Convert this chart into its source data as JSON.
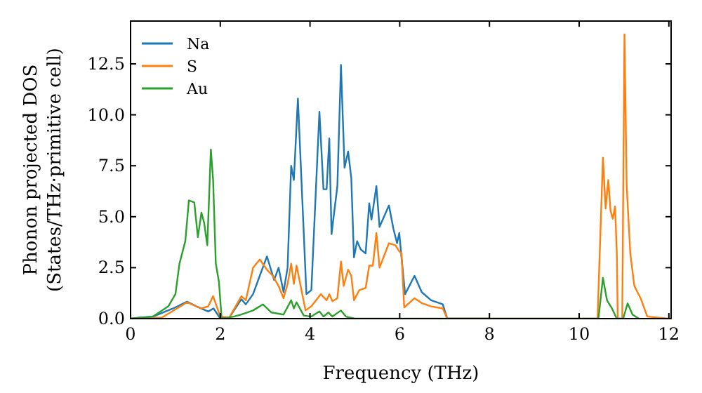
{
  "chart_data": {
    "type": "line",
    "xlabel": "Frequency (THz)",
    "ylabel": "Phonon projected DOS\n(States/THz·primitive cell)",
    "xlim": [
      0,
      12.05
    ],
    "ylim": [
      0,
      14.6
    ],
    "xticks": [
      0,
      2,
      4,
      6,
      8,
      10,
      12
    ],
    "yticks": [
      {
        "value": 0,
        "label": "0.0"
      },
      {
        "value": 2.5,
        "label": "2.5"
      },
      {
        "value": 5,
        "label": "5.0"
      },
      {
        "value": 7.5,
        "label": "7.5"
      },
      {
        "value": 10,
        "label": "10.0"
      },
      {
        "value": 12.5,
        "label": "12.5"
      }
    ],
    "legend": "top left",
    "series": [
      {
        "name": "Na",
        "color": "#1f77b4",
        "x": [
          0,
          0.2,
          0.5,
          0.95,
          1.26,
          1.47,
          1.73,
          1.85,
          2.0,
          2.2,
          2.47,
          2.57,
          2.73,
          2.88,
          3.04,
          3.2,
          3.3,
          3.41,
          3.5,
          3.58,
          3.64,
          3.73,
          3.92,
          4.03,
          4.21,
          4.3,
          4.37,
          4.43,
          4.48,
          4.61,
          4.69,
          4.77,
          4.85,
          4.92,
          4.98,
          5.05,
          5.13,
          5.24,
          5.32,
          5.37,
          5.48,
          5.55,
          5.76,
          5.86,
          5.94,
          5.99,
          6.04,
          6.12,
          6.33,
          6.49,
          6.7,
          6.96,
          7.06,
          8
        ],
        "values": [
          0,
          0.05,
          0.1,
          0.5,
          0.83,
          0.6,
          0.35,
          0.5,
          0,
          0.05,
          0.95,
          0.7,
          1.2,
          2.1,
          3.05,
          1.9,
          2.5,
          1.3,
          2.5,
          7.5,
          6.8,
          10.8,
          1.2,
          1.4,
          10.15,
          6.35,
          6.35,
          8.84,
          4.15,
          6.5,
          12.45,
          7.4,
          8.2,
          6.9,
          3.0,
          3.8,
          3.4,
          3.2,
          5.66,
          4.85,
          6.5,
          4.5,
          5.55,
          4.4,
          3.7,
          4.2,
          3.0,
          1.2,
          2.1,
          1.3,
          0.9,
          0.7,
          0,
          0
        ]
      },
      {
        "name": "S",
        "color": "#ff7f0e",
        "x": [
          0,
          0.7,
          1.26,
          1.57,
          1.73,
          1.84,
          2.0,
          2.2,
          2.47,
          2.57,
          2.73,
          2.88,
          3.04,
          3.17,
          3.3,
          3.41,
          3.5,
          3.58,
          3.64,
          3.7,
          3.8,
          3.9,
          4.03,
          4.24,
          4.37,
          4.43,
          4.5,
          4.61,
          4.69,
          4.75,
          4.85,
          4.92,
          4.98,
          5.1,
          5.24,
          5.32,
          5.4,
          5.48,
          5.55,
          5.76,
          5.9,
          5.99,
          6.04,
          6.1,
          6.33,
          6.5,
          6.7,
          6.96,
          7.06,
          10.41,
          10.53,
          10.59,
          10.65,
          10.7,
          10.75,
          10.8,
          10.84,
          10.86,
          10.96,
          11.01,
          11.06,
          11.14,
          11.23,
          11.37,
          11.52,
          12
        ],
        "values": [
          0,
          0.05,
          0.8,
          0.5,
          0.6,
          1.1,
          0.1,
          0.05,
          1.1,
          0.9,
          2.5,
          2.9,
          2.4,
          2.1,
          1.6,
          1.0,
          1.7,
          2.7,
          1.7,
          2.6,
          1.5,
          0.4,
          0.6,
          1.2,
          0.9,
          1.2,
          0.85,
          1.0,
          2.8,
          1.6,
          2.4,
          2.1,
          0.9,
          1.4,
          1.5,
          2.6,
          2.6,
          4.2,
          2.5,
          3.7,
          3.6,
          3.3,
          3.2,
          0.55,
          1.0,
          0.75,
          0.6,
          0.5,
          0,
          0,
          7.9,
          5.4,
          6.8,
          5.3,
          4.9,
          5.5,
          3.2,
          0,
          0,
          13.95,
          6.5,
          3.2,
          1.6,
          1.0,
          0.1,
          0
        ]
      },
      {
        "name": "Au",
        "color": "#2ca02c",
        "x": [
          0,
          0.5,
          0.84,
          1.0,
          1.09,
          1.22,
          1.3,
          1.42,
          1.5,
          1.58,
          1.64,
          1.71,
          1.79,
          1.84,
          1.9,
          1.97,
          2.03,
          2.3,
          2.47,
          2.73,
          2.95,
          3.14,
          3.41,
          3.58,
          3.64,
          3.7,
          3.86,
          4.03,
          4.21,
          4.3,
          4.41,
          4.5,
          4.69,
          4.8,
          5.0,
          10.43,
          10.53,
          10.62,
          10.73,
          10.84,
          10.98,
          11.08,
          11.19,
          11.33
        ],
        "values": [
          0,
          0.1,
          0.6,
          1.2,
          2.7,
          3.8,
          5.8,
          5.7,
          4.0,
          5.2,
          4.7,
          3.6,
          8.3,
          6.8,
          2.7,
          1.8,
          0,
          0.1,
          0.2,
          0.4,
          0.7,
          0.3,
          0.2,
          0.9,
          0.5,
          0.8,
          0.15,
          0.1,
          0.35,
          0.1,
          0.3,
          0.1,
          0.4,
          0.1,
          0,
          0,
          2.0,
          0.9,
          0.5,
          0,
          0,
          0.75,
          0.2,
          0
        ]
      }
    ]
  }
}
